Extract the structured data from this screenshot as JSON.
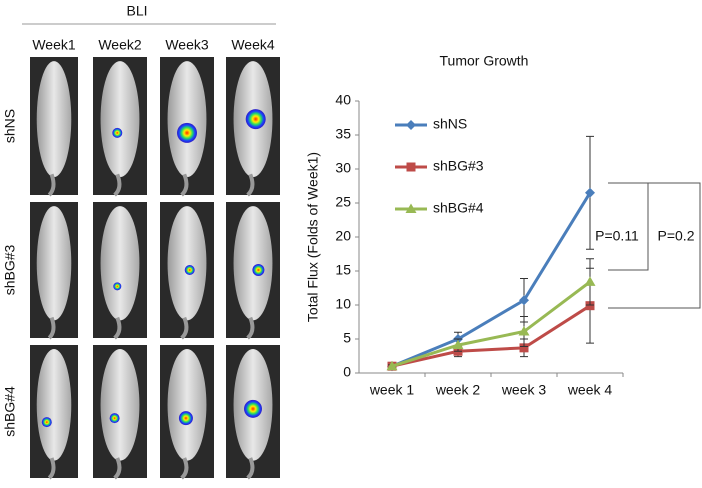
{
  "panel": {
    "title": "BLI",
    "columns": [
      "Week1",
      "Week2",
      "Week3",
      "Week4"
    ],
    "rows": [
      "shNS",
      "shBG#3",
      "shBG#4"
    ]
  },
  "chart_data": {
    "type": "line",
    "title": "Tumor Growth",
    "y_label": "Total Flux (Folds of Week1)",
    "categories": [
      "week 1",
      "week 2",
      "week 3",
      "week 4"
    ],
    "series": [
      {
        "name": "shNS",
        "color": "#4a7ebb",
        "marker": "diamond",
        "values": [
          1,
          5,
          10.7,
          26.5
        ],
        "errors": [
          0.2,
          1,
          3.2,
          8.3
        ]
      },
      {
        "name": "shBG#3",
        "color": "#be4b48",
        "marker": "square",
        "values": [
          1,
          3.2,
          3.7,
          9.9
        ],
        "errors": [
          0.2,
          0.8,
          1.3,
          5.5
        ]
      },
      {
        "name": "shBG#4",
        "color": "#98b954",
        "marker": "triangle",
        "values": [
          1,
          4.1,
          6.1,
          13.4
        ],
        "errors": [
          0.2,
          0.9,
          2.2,
          3.4
        ]
      }
    ],
    "ylim": [
      0,
      40
    ],
    "yticks": [
      0,
      5,
      10,
      15,
      20,
      25,
      30,
      35,
      40
    ],
    "annotations": [
      "P=0.11",
      "P=0.2"
    ]
  }
}
